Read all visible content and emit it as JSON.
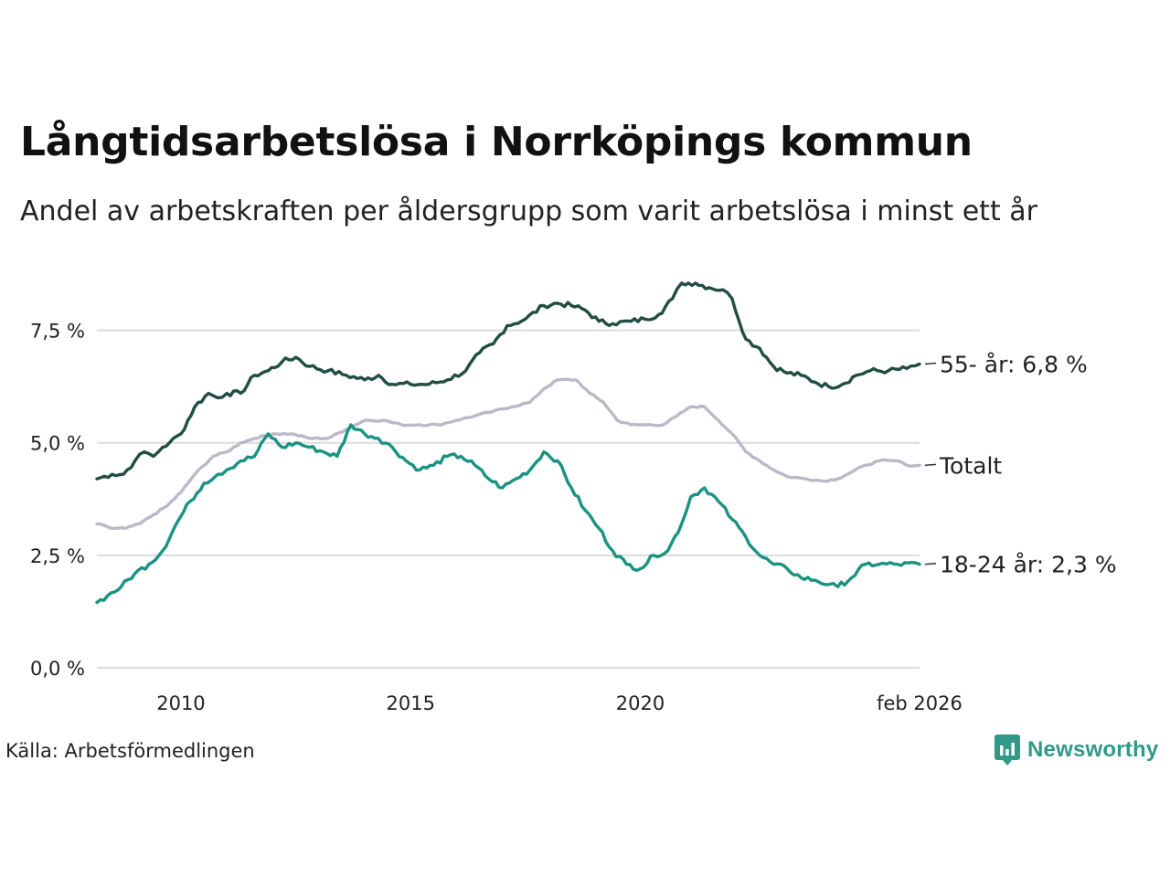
{
  "title": "Långtidsarbetslösa i Norrköpings kommun",
  "subtitle": "Andel av arbetskraften per åldersgrupp som varit arbetslösa i minst ett år",
  "source": "Källa: Arbetsförmedlingen",
  "brand": "Newsworthy",
  "colors": {
    "series_55": "#214d45",
    "series_total": "#bdb8c9",
    "series_18_24": "#1a9382",
    "grid": "#dcdcdc",
    "brand": "#2f9a8a"
  },
  "chart_data": {
    "type": "line",
    "title": "Långtidsarbetslösa i Norrköpings kommun",
    "xlabel": "",
    "ylabel": "",
    "xlim": [
      2008.17,
      2026.08
    ],
    "ylim": [
      0,
      8.75
    ],
    "y_ticks": [
      0,
      2.5,
      5.0,
      7.5
    ],
    "y_tick_labels": [
      "0,0 %",
      "2,5 %",
      "5,0 %",
      "7,5 %"
    ],
    "x_ticks": [
      2010,
      2015,
      2020,
      2026.08
    ],
    "x_tick_labels": [
      "2010",
      "2015",
      "2020",
      "feb 2026"
    ],
    "grid": true,
    "series": [
      {
        "name": "55- år",
        "end_label": "55- år: 6,8 %",
        "color": "#214d45",
        "x": [
          2008.17,
          2008.5,
          2008.75,
          2009.0,
          2009.2,
          2009.4,
          2009.6,
          2009.75,
          2010.0,
          2010.3,
          2010.6,
          2010.8,
          2011.0,
          2011.3,
          2011.6,
          2011.9,
          2012.2,
          2012.5,
          2012.8,
          2013.2,
          2013.6,
          2014.0,
          2014.3,
          2014.6,
          2015.0,
          2015.4,
          2015.8,
          2016.2,
          2016.5,
          2016.8,
          2017.1,
          2017.5,
          2017.9,
          2018.2,
          2018.5,
          2018.8,
          2019.1,
          2019.4,
          2019.8,
          2020.1,
          2020.4,
          2020.7,
          2020.9,
          2021.2,
          2021.5,
          2021.8,
          2022.0,
          2022.3,
          2022.6,
          2022.9,
          2023.2,
          2023.5,
          2023.8,
          2024.1,
          2024.4,
          2024.7,
          2025.0,
          2025.4,
          2025.8,
          2026.08
        ],
        "values": [
          4.2,
          4.3,
          4.3,
          4.6,
          4.8,
          4.7,
          4.9,
          5.0,
          5.2,
          5.8,
          6.1,
          6.0,
          6.1,
          6.1,
          6.5,
          6.6,
          6.8,
          6.9,
          6.7,
          6.6,
          6.5,
          6.4,
          6.5,
          6.3,
          6.3,
          6.3,
          6.4,
          6.6,
          7.0,
          7.2,
          7.6,
          7.75,
          8.05,
          8.1,
          8.05,
          7.95,
          7.7,
          7.65,
          7.7,
          7.75,
          7.85,
          8.2,
          8.55,
          8.55,
          8.45,
          8.4,
          8.2,
          7.3,
          7.1,
          6.7,
          6.55,
          6.5,
          6.35,
          6.25,
          6.3,
          6.5,
          6.6,
          6.6,
          6.65,
          6.75
        ]
      },
      {
        "name": "Totalt",
        "end_label": "Totalt",
        "color": "#bdb8c9",
        "x": [
          2008.17,
          2008.5,
          2008.8,
          2009.1,
          2009.4,
          2009.7,
          2010.0,
          2010.3,
          2010.7,
          2011.0,
          2011.3,
          2011.6,
          2012.0,
          2012.4,
          2012.8,
          2013.2,
          2013.6,
          2014.0,
          2014.4,
          2014.8,
          2015.2,
          2015.6,
          2016.0,
          2016.4,
          2016.8,
          2017.2,
          2017.6,
          2017.9,
          2018.2,
          2018.6,
          2018.9,
          2019.2,
          2019.5,
          2019.8,
          2020.1,
          2020.5,
          2020.8,
          2021.1,
          2021.4,
          2021.7,
          2022.0,
          2022.3,
          2022.6,
          2022.9,
          2023.2,
          2023.6,
          2024.0,
          2024.3,
          2024.6,
          2024.9,
          2025.2,
          2025.6,
          2025.8,
          2026.08
        ],
        "values": [
          3.2,
          3.1,
          3.1,
          3.2,
          3.4,
          3.6,
          3.9,
          4.3,
          4.7,
          4.8,
          5.0,
          5.1,
          5.2,
          5.2,
          5.1,
          5.1,
          5.3,
          5.5,
          5.5,
          5.4,
          5.4,
          5.4,
          5.5,
          5.6,
          5.7,
          5.8,
          5.9,
          6.2,
          6.4,
          6.4,
          6.1,
          5.9,
          5.5,
          5.4,
          5.4,
          5.4,
          5.6,
          5.8,
          5.8,
          5.5,
          5.2,
          4.8,
          4.6,
          4.4,
          4.25,
          4.2,
          4.15,
          4.2,
          4.35,
          4.5,
          4.6,
          4.6,
          4.5,
          4.5
        ]
      },
      {
        "name": "18-24 år",
        "end_label": "18-24 år: 2,3 %",
        "color": "#1a9382",
        "x": [
          2008.17,
          2008.4,
          2008.7,
          2009.0,
          2009.3,
          2009.6,
          2009.9,
          2010.2,
          2010.5,
          2010.8,
          2011.0,
          2011.3,
          2011.6,
          2011.9,
          2012.2,
          2012.5,
          2012.8,
          2013.1,
          2013.4,
          2013.7,
          2014.0,
          2014.3,
          2014.6,
          2014.9,
          2015.2,
          2015.5,
          2015.8,
          2016.1,
          2016.4,
          2016.7,
          2017.0,
          2017.3,
          2017.6,
          2017.9,
          2018.2,
          2018.5,
          2018.8,
          2019.1,
          2019.4,
          2019.7,
          2020.0,
          2020.3,
          2020.6,
          2020.9,
          2021.1,
          2021.4,
          2021.7,
          2022.0,
          2022.3,
          2022.6,
          2022.9,
          2023.2,
          2023.5,
          2023.8,
          2024.1,
          2024.3,
          2024.6,
          2024.9,
          2025.2,
          2025.6,
          2026.08
        ],
        "values": [
          1.45,
          1.6,
          1.8,
          2.1,
          2.3,
          2.6,
          3.2,
          3.7,
          4.1,
          4.3,
          4.4,
          4.6,
          4.7,
          5.2,
          4.9,
          5.0,
          4.9,
          4.8,
          4.7,
          5.4,
          5.2,
          5.1,
          4.9,
          4.6,
          4.4,
          4.5,
          4.7,
          4.7,
          4.5,
          4.2,
          4.0,
          4.2,
          4.4,
          4.8,
          4.6,
          4.0,
          3.5,
          3.1,
          2.6,
          2.3,
          2.2,
          2.5,
          2.6,
          3.2,
          3.8,
          4.0,
          3.7,
          3.3,
          2.9,
          2.5,
          2.3,
          2.2,
          2.0,
          1.95,
          1.85,
          1.8,
          2.0,
          2.3,
          2.3,
          2.3,
          2.3
        ]
      }
    ]
  }
}
